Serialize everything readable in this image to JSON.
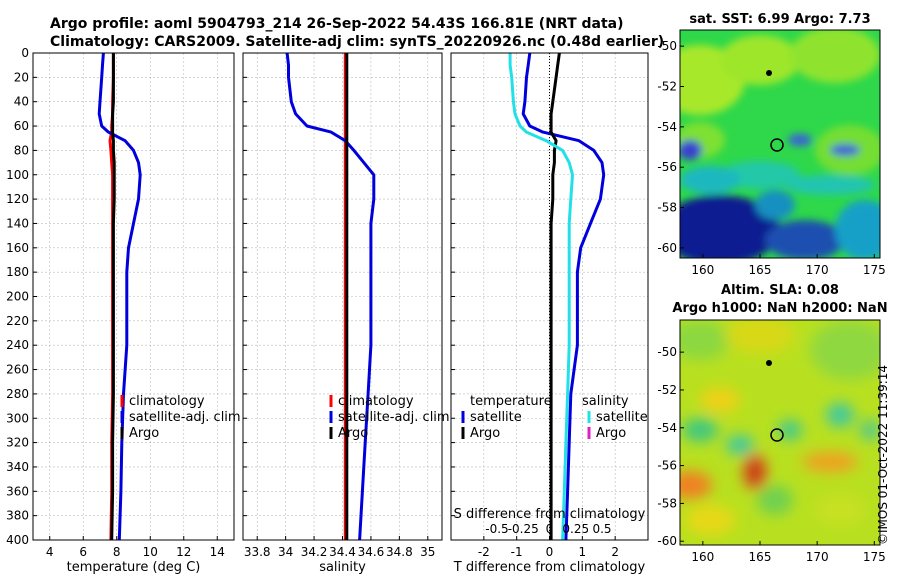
{
  "figure": {
    "title_line1": "Argo profile: aoml 5904793_214 26-Sep-2022 54.43S 166.81E (NRT data)",
    "title_line2": "Climatology: CARS2009. Satellite-adj clim: synTS_20220926.nc (0.48d earlier)",
    "stamp": "©IMOS 01-Oct-2022 11:39:14"
  },
  "colors": {
    "climatology": "#ff0000",
    "satellite_adj": "#0000dd",
    "argo": "#000000",
    "satellite_s": "#22e0e8",
    "argo_s": "#e020c0"
  },
  "legends": {
    "temp": [
      "climatology",
      "satellite-adj. clim",
      "Argo"
    ],
    "sal": [
      "climatology",
      "satellite-adj. clim",
      "Argo"
    ],
    "diff_t_header": "temperature",
    "diff_t": [
      "satellite",
      "Argo"
    ],
    "diff_s_header": "salinity",
    "diff_s": [
      "satellite",
      "Argo"
    ]
  },
  "chart_data": [
    {
      "type": "line",
      "id": "temperature",
      "xlabel": "temperature (deg C)",
      "ylabel": "",
      "xlim": [
        3,
        15
      ],
      "xticks": [
        4,
        6,
        8,
        10,
        12,
        14
      ],
      "ylim": [
        0,
        400
      ],
      "yticks": [
        0,
        20,
        40,
        60,
        80,
        100,
        120,
        140,
        160,
        180,
        200,
        220,
        240,
        260,
        280,
        300,
        320,
        340,
        360,
        380,
        400
      ],
      "y_reversed": true,
      "grid": true,
      "depth": [
        0,
        10,
        20,
        40,
        50,
        60,
        65,
        72,
        80,
        90,
        100,
        120,
        140,
        160,
        180,
        200,
        240,
        280,
        320,
        360,
        400
      ],
      "series": [
        {
          "name": "climatology",
          "color": "#ff0000",
          "values": [
            7.8,
            7.8,
            7.8,
            7.75,
            7.75,
            7.7,
            7.7,
            7.6,
            7.65,
            7.7,
            7.75,
            7.75,
            7.75,
            7.75,
            7.75,
            7.75,
            7.75,
            7.75,
            7.7,
            7.7,
            7.65
          ]
        },
        {
          "name": "satellite-adj. clim",
          "color": "#0000dd",
          "values": [
            7.2,
            7.15,
            7.1,
            7.0,
            6.95,
            7.1,
            7.5,
            8.5,
            9.0,
            9.3,
            9.4,
            9.3,
            9.0,
            8.7,
            8.6,
            8.6,
            8.6,
            8.4,
            8.3,
            8.25,
            8.15
          ]
        },
        {
          "name": "Argo",
          "color": "#000000",
          "values": [
            7.8,
            7.8,
            7.8,
            7.8,
            7.75,
            7.75,
            7.75,
            7.8,
            7.8,
            7.85,
            7.85,
            7.85,
            7.8,
            7.8,
            7.8,
            7.8,
            7.8,
            7.8,
            7.75,
            7.75,
            7.7
          ]
        }
      ]
    },
    {
      "type": "line",
      "id": "salinity",
      "xlabel": "salinity",
      "ylabel": "",
      "xlim": [
        33.7,
        35.1
      ],
      "xticks": [
        33.8,
        34,
        34.2,
        34.4,
        34.6,
        34.8,
        35
      ],
      "xticklabels": [
        "33.8",
        "34",
        "34.2",
        "34.4",
        "34.6",
        "34.8",
        "35"
      ],
      "ylim": [
        0,
        400
      ],
      "y_reversed": true,
      "grid": true,
      "depth": [
        0,
        10,
        20,
        40,
        50,
        60,
        65,
        72,
        80,
        90,
        100,
        120,
        140,
        160,
        180,
        200,
        240,
        280,
        320,
        360,
        400
      ],
      "series": [
        {
          "name": "climatology",
          "color": "#ff0000",
          "values": [
            34.42,
            34.42,
            34.42,
            34.42,
            34.42,
            34.42,
            34.42,
            34.42,
            34.42,
            34.42,
            34.42,
            34.42,
            34.42,
            34.42,
            34.42,
            34.42,
            34.42,
            34.42,
            34.42,
            34.42,
            34.42
          ]
        },
        {
          "name": "satellite-adj. clim",
          "color": "#0000dd",
          "values": [
            34.01,
            34.02,
            34.02,
            34.04,
            34.07,
            34.15,
            34.32,
            34.42,
            34.48,
            34.55,
            34.62,
            34.62,
            34.6,
            34.6,
            34.6,
            34.6,
            34.6,
            34.58,
            34.56,
            34.54,
            34.52
          ]
        },
        {
          "name": "Argo",
          "color": "#000000",
          "values": [
            34.43,
            34.43,
            34.43,
            34.43,
            34.43,
            34.43,
            34.43,
            34.43,
            34.43,
            34.43,
            34.43,
            34.43,
            34.43,
            34.43,
            34.43,
            34.43,
            34.43,
            34.43,
            34.43,
            34.43,
            34.43
          ]
        }
      ]
    },
    {
      "type": "line",
      "id": "difference",
      "xlabel": "T difference from climatology",
      "top_axis_label": "S difference from climatology",
      "xlim": [
        -3,
        3
      ],
      "xticks": [
        -2,
        -1,
        0,
        1,
        2
      ],
      "top_axis_ticks": [
        -0.5,
        -0.25,
        0,
        0.25,
        0.5
      ],
      "top_axis_ticklabels": [
        "-0.5",
        "-0.25",
        "0",
        "0.25",
        "0.5"
      ],
      "ylim": [
        0,
        400
      ],
      "y_reversed": true,
      "grid": true,
      "zero_line": true,
      "depth": [
        0,
        10,
        20,
        40,
        50,
        60,
        65,
        72,
        80,
        90,
        100,
        120,
        140,
        160,
        180,
        200,
        240,
        280,
        320,
        360,
        400
      ],
      "series": [
        {
          "name": "satellite T",
          "color": "#0000dd",
          "values": [
            -0.6,
            -0.65,
            -0.7,
            -0.75,
            -0.8,
            -0.6,
            -0.2,
            0.9,
            1.35,
            1.6,
            1.65,
            1.55,
            1.25,
            0.95,
            0.85,
            0.85,
            0.85,
            0.65,
            0.6,
            0.55,
            0.5
          ]
        },
        {
          "name": "Argo T",
          "color": "#000000",
          "values": [
            0.3,
            0.25,
            0.2,
            0.1,
            0.05,
            0.05,
            0.05,
            0.2,
            0.15,
            0.15,
            0.1,
            0.1,
            0.05,
            0.05,
            0.05,
            0.05,
            0.05,
            0.05,
            0.05,
            0.05,
            0.05
          ]
        },
        {
          "name": "satellite S",
          "color": "#22e0e8",
          "values": [
            -1.2,
            -1.2,
            -1.15,
            -1.1,
            -1.05,
            -0.9,
            -0.7,
            -0.1,
            0.4,
            0.6,
            0.7,
            0.65,
            0.6,
            0.6,
            0.6,
            0.6,
            0.6,
            0.55,
            0.5,
            0.45,
            0.4
          ]
        }
      ]
    },
    {
      "type": "heatmap",
      "id": "sst_map",
      "title": "sat. SST: 6.99 Argo: 7.73",
      "xlim": [
        158,
        175.5
      ],
      "xticks": [
        160,
        165,
        170,
        175
      ],
      "ylim": [
        -60.5,
        -49.2
      ],
      "yticks": [
        -50,
        -52,
        -54,
        -56,
        -58,
        -60
      ],
      "marker": {
        "lon": 166.81,
        "lat": -54.43
      }
    },
    {
      "type": "heatmap",
      "id": "sla_map",
      "title_line1": "Altim. SLA: 0.08",
      "title_line2": "Argo h1000: NaN h2000: NaN",
      "xlim": [
        158,
        175.5
      ],
      "xticks": [
        160,
        165,
        170,
        175
      ],
      "ylim": [
        -60.2,
        -48.3
      ],
      "yticks": [
        -50,
        -52,
        -54,
        -56,
        -58,
        -60
      ],
      "marker": {
        "lon": 166.81,
        "lat": -54.43
      }
    }
  ]
}
